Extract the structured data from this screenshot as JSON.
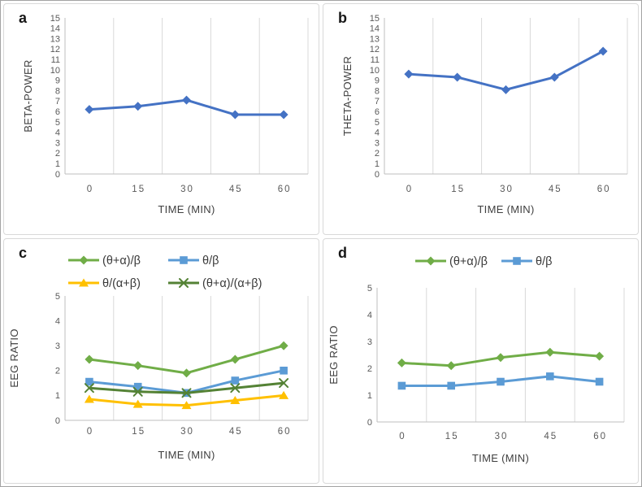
{
  "style": {
    "gridline_color": "#d9d9d9",
    "axis_line_color": "#bfbfbf",
    "tick_label_color": "#595959",
    "axis_title_color": "#3f3f3f",
    "legend_text_color": "#3a3a3a",
    "power_line_color": "#4472C4",
    "green_series_color": "#70AD47",
    "blue_series_color": "#5B9BD5",
    "yellow_series_color": "#FFC000",
    "dark_green_series_color": "#548235"
  },
  "chart_data": [
    {
      "id": "a",
      "type": "line",
      "panel_label": "a",
      "xlabel": "TIME (MIN)",
      "ylabel": "BETA-POWER",
      "categories": [
        "0",
        "15",
        "30",
        "45",
        "60"
      ],
      "ylim": [
        0,
        15
      ],
      "ytick_step": 1,
      "grid": "vertical-only",
      "legend_position": "none",
      "series": [
        {
          "name": "BETA-POWER",
          "color": "#4472C4",
          "marker": "diamond",
          "values": [
            6.2,
            6.5,
            7.1,
            5.7,
            5.7
          ]
        }
      ]
    },
    {
      "id": "b",
      "type": "line",
      "panel_label": "b",
      "xlabel": "TIME (MIN)",
      "ylabel": "THETA-POWER",
      "categories": [
        "0",
        "15",
        "30",
        "45",
        "60"
      ],
      "ylim": [
        0,
        15
      ],
      "ytick_step": 1,
      "grid": "vertical-only",
      "legend_position": "none",
      "series": [
        {
          "name": "THETA-POWER",
          "color": "#4472C4",
          "marker": "diamond",
          "values": [
            9.6,
            9.3,
            8.1,
            9.3,
            11.8
          ]
        }
      ]
    },
    {
      "id": "c",
      "type": "line",
      "panel_label": "c",
      "xlabel": "TIME (MIN)",
      "ylabel": "EEG RATIO",
      "categories": [
        "0",
        "15",
        "30",
        "45",
        "60"
      ],
      "ylim": [
        0,
        5
      ],
      "ytick_step": 1,
      "grid": "vertical-only",
      "legend_position": "top-two-rows",
      "series": [
        {
          "name": "(θ+α)/β",
          "color": "#70AD47",
          "marker": "diamond",
          "values": [
            2.45,
            2.2,
            1.9,
            2.45,
            3.0
          ]
        },
        {
          "name": "θ/β",
          "color": "#5B9BD5",
          "marker": "square",
          "values": [
            1.55,
            1.35,
            1.1,
            1.6,
            2.0
          ]
        },
        {
          "name": "θ/(α+β)",
          "color": "#FFC000",
          "marker": "triangle",
          "values": [
            0.85,
            0.65,
            0.6,
            0.8,
            1.0
          ]
        },
        {
          "name": "(θ+α)/(α+β)",
          "color": "#548235",
          "marker": "x",
          "values": [
            1.3,
            1.15,
            1.1,
            1.3,
            1.5
          ]
        }
      ]
    },
    {
      "id": "d",
      "type": "line",
      "panel_label": "d",
      "xlabel": "TIME (MIN)",
      "ylabel": "EEG RATIO",
      "categories": [
        "0",
        "15",
        "30",
        "45",
        "60"
      ],
      "ylim": [
        0,
        5
      ],
      "ytick_step": 1,
      "grid": "vertical-only",
      "legend_position": "top-one-row",
      "series": [
        {
          "name": "(θ+α)/β",
          "color": "#70AD47",
          "marker": "diamond",
          "values": [
            2.2,
            2.1,
            2.4,
            2.6,
            2.45
          ]
        },
        {
          "name": "θ/β",
          "color": "#5B9BD5",
          "marker": "square",
          "values": [
            1.35,
            1.35,
            1.5,
            1.7,
            1.5
          ]
        }
      ]
    }
  ]
}
